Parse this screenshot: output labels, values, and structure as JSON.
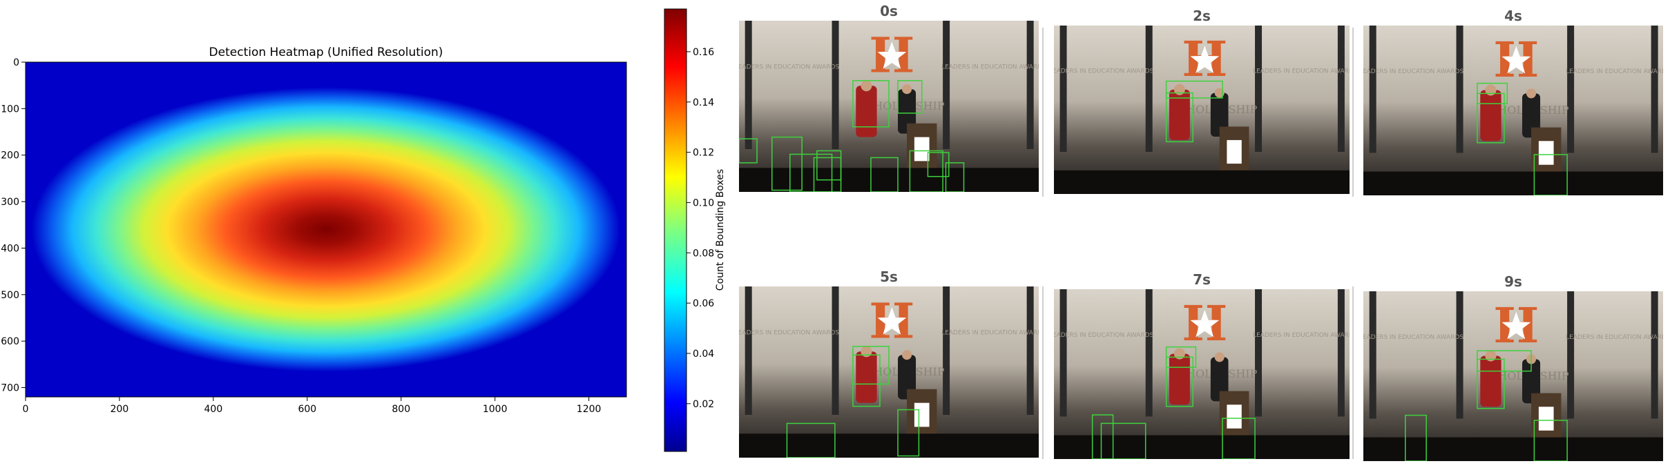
{
  "chart_data": {
    "type": "heatmap",
    "title": "Detection Heatmap (Unified Resolution)",
    "x_ticks": [
      0,
      200,
      400,
      600,
      800,
      1000,
      1200
    ],
    "y_ticks": [
      0,
      100,
      200,
      300,
      400,
      500,
      600,
      700
    ],
    "xlim": [
      0,
      1280
    ],
    "ylim": [
      720,
      0
    ],
    "peak": {
      "x": 600,
      "y": 360,
      "value": 0.175
    },
    "colormap": "jet",
    "colorbar": {
      "label": "Count of Bounding Boxes",
      "ticks": [
        "0.02",
        "0.04",
        "0.06",
        "0.08",
        "0.10",
        "0.12",
        "0.14",
        "0.16"
      ],
      "range": [
        0.001,
        0.177
      ]
    }
  },
  "frames": [
    {
      "label": "0s",
      "boxes": 11
    },
    {
      "label": "2s",
      "boxes": 2
    },
    {
      "label": "4s",
      "boxes": 3
    },
    {
      "label": "5s",
      "boxes": 4
    },
    {
      "label": "7s",
      "boxes": 5
    },
    {
      "label": "9s",
      "boxes": 4
    }
  ],
  "scene": {
    "backdrop_left": "LEADERS IN EDUCATION AWARDS",
    "backdrop_right": "LEADERS IN EDUCATION AWARDS",
    "backdrop_center": "SCHOLARSHIP",
    "logo_letter": "H"
  },
  "colors": {
    "box_color": "#3dd23d",
    "heat_low": "#00008f",
    "heat_high": "#800000"
  }
}
